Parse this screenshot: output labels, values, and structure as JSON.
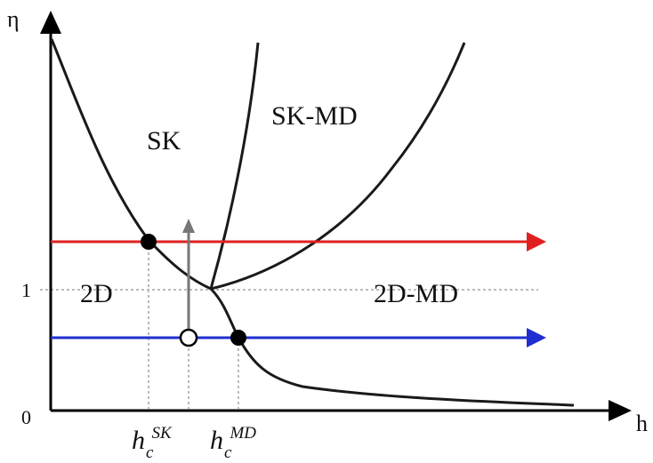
{
  "axes": {
    "y_label": "η",
    "x_label": "h",
    "y_tick_1": "1",
    "origin": "0"
  },
  "regions": {
    "sk": "SK",
    "sk_md": "SK-MD",
    "two_d": "2D",
    "two_d_md": "2D-MD"
  },
  "critical_fields": {
    "h_sk": {
      "base": "h",
      "sub": "c",
      "sup": "SK"
    },
    "h_md": {
      "base": "h",
      "sub": "c",
      "sup": "MD"
    }
  },
  "colors": {
    "upper_arrow": "#e02020",
    "lower_arrow": "#1f2fd0",
    "curves": "#1a1a1a",
    "vertical_arrow": "#777777",
    "dotted_guides": "#bbbbbb"
  }
}
